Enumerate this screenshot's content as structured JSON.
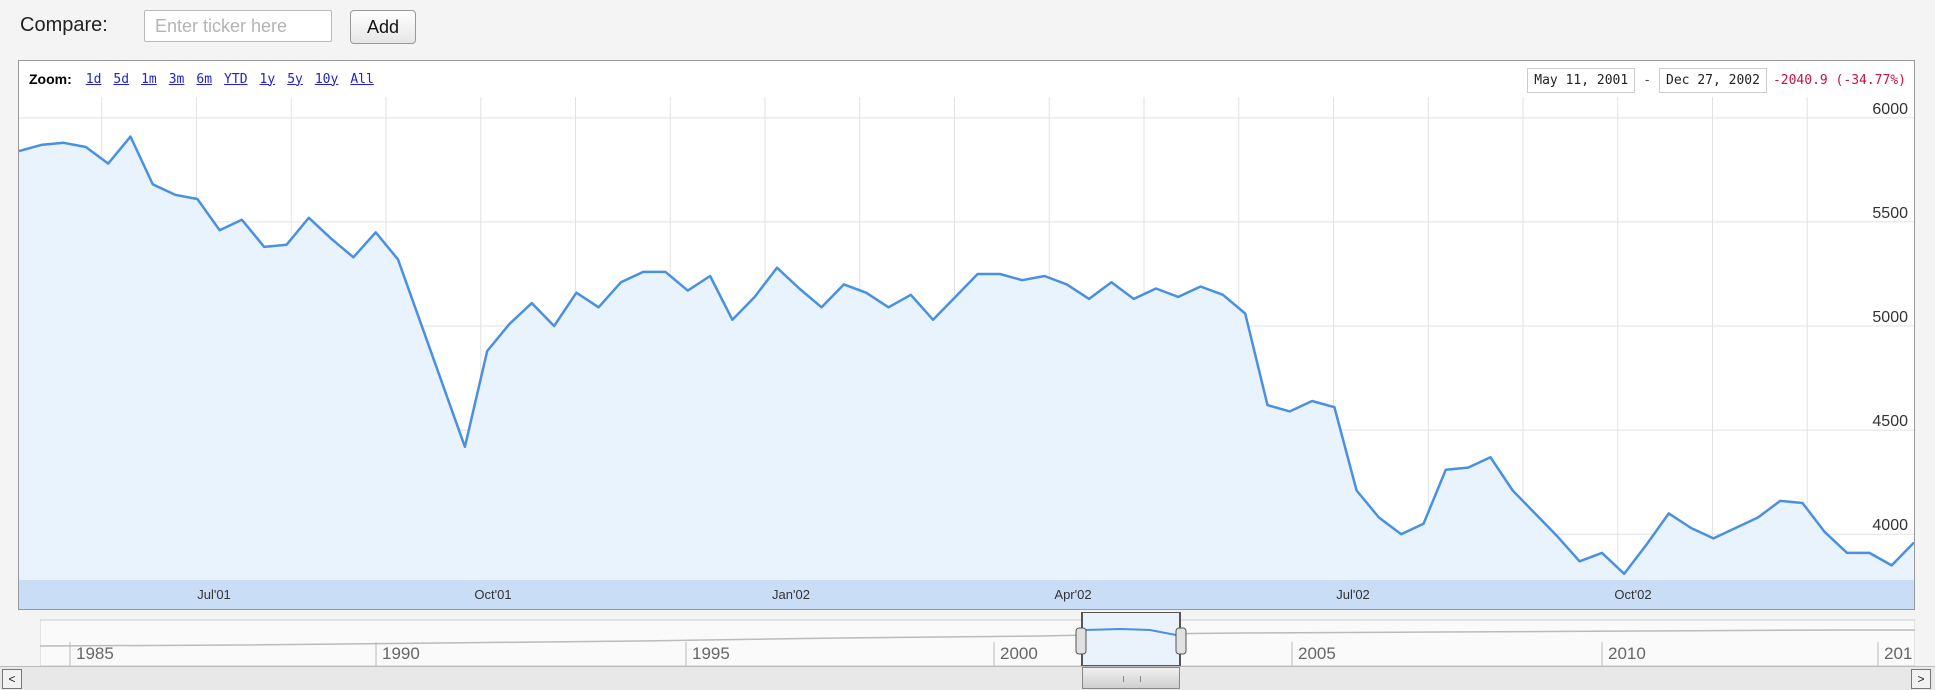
{
  "compare": {
    "label": "Compare:",
    "placeholder": "Enter ticker here",
    "add_label": "Add"
  },
  "zoom": {
    "label": "Zoom:",
    "options": [
      "1d",
      "5d",
      "1m",
      "3m",
      "6m",
      "YTD",
      "1y",
      "5y",
      "10y",
      "All"
    ]
  },
  "range": {
    "start": "May 11, 2001",
    "separator": "-",
    "end": "Dec 27, 2002",
    "change": "-2040.9 (-34.77%)"
  },
  "colors": {
    "line": "#4a90e2",
    "fill": "#e8f3fd",
    "axis_band": "#c9ddf6",
    "negative": "#cc1144"
  },
  "chart_data": {
    "type": "area",
    "ylim": [
      3780,
      6100
    ],
    "y_ticks": [
      6000,
      5500,
      5000,
      4500,
      4000
    ],
    "x_tick_labels": [
      "Jul'01",
      "Oct'01",
      "Jan'02",
      "Apr'02",
      "Jul'02",
      "Oct'02"
    ],
    "grid": true,
    "values": [
      5840,
      5870,
      5880,
      5860,
      5780,
      5910,
      5680,
      5630,
      5610,
      5460,
      5510,
      5380,
      5390,
      5520,
      5420,
      5330,
      5450,
      5320,
      5020,
      4720,
      4420,
      4880,
      5010,
      5110,
      5000,
      5160,
      5090,
      5210,
      5260,
      5260,
      5170,
      5240,
      5030,
      5140,
      5280,
      5180,
      5090,
      5200,
      5160,
      5090,
      5150,
      5030,
      5140,
      5250,
      5250,
      5220,
      5240,
      5200,
      5130,
      5210,
      5130,
      5180,
      5140,
      5190,
      5150,
      5060,
      4620,
      4590,
      4640,
      4610,
      4210,
      4080,
      4000,
      4050,
      4310,
      4320,
      4370,
      4210,
      4100,
      3990,
      3870,
      3910,
      3810,
      3950,
      4100,
      4030,
      3980,
      4030,
      4080,
      4160,
      4150,
      4010,
      3910,
      3910,
      3850,
      3960
    ]
  },
  "navigator": {
    "year_labels": [
      "1985",
      "1990",
      "1995",
      "2000",
      "2005",
      "2010",
      "201"
    ]
  },
  "scrollbar": {
    "left_arrow": "<",
    "right_arrow": ">"
  }
}
